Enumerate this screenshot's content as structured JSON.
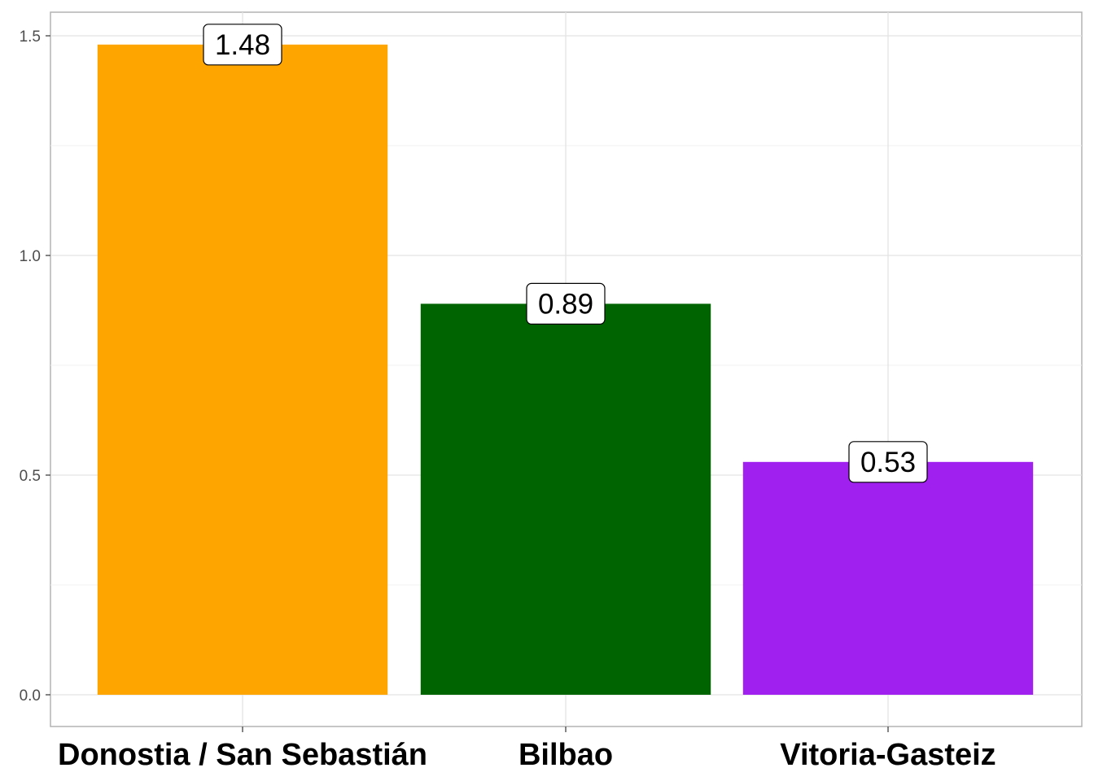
{
  "chart_data": {
    "type": "bar",
    "categories": [
      "Donostia / San Sebastián",
      "Bilbao",
      "Vitoria-Gasteiz"
    ],
    "values": [
      1.48,
      0.89,
      0.53
    ],
    "data_labels": [
      "1.48",
      "0.89",
      "0.53"
    ],
    "colors": [
      "#ffa500",
      "#006400",
      "#a020f0"
    ],
    "title": "",
    "xlabel": "",
    "ylabel": "",
    "ylim": [
      -0.07,
      1.56
    ],
    "yticks": [
      0.0,
      0.5,
      1.0,
      1.5
    ],
    "ytick_labels": [
      "0.0",
      "0.5",
      "1.0",
      "1.5"
    ],
    "grid": true,
    "legend": "none"
  }
}
